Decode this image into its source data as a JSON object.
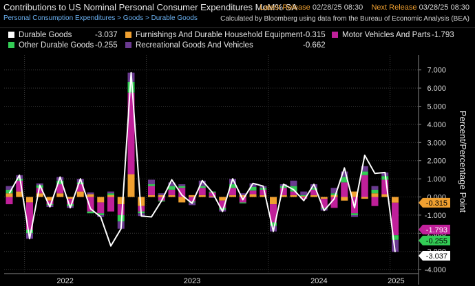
{
  "header": {
    "title": "Contributions to US Nominal Personal Consumer Expenditures MoM% SA",
    "latest_release_label": "Latest Release",
    "latest_release_value": "02/28/25 08:30",
    "next_release_label": "Next Release",
    "next_release_value": "03/28/25 08:30",
    "breadcrumb": "Personal Consumption Expenditures > Goods > Durable Goods",
    "source_note": "Calculated by Bloomberg using data from the Bureau of Economic Analysis (BEA)"
  },
  "legend": [
    {
      "name": "Durable Goods",
      "value": "-3.037",
      "color": "#ffffff"
    },
    {
      "name": "Furnishings And Durable Household Equipment",
      "value": "-0.315",
      "color": "#f0a030"
    },
    {
      "name": "Motor Vehicles And Parts",
      "value": "-1.793",
      "color": "#c0209a"
    },
    {
      "name": "Other Durable Goods",
      "value": "-0.255",
      "color": "#33cc55"
    },
    {
      "name": "Recreational Goods And Vehicles",
      "value": "-0.662",
      "color": "#6a3a90"
    }
  ],
  "chart_data": {
    "type": "bar",
    "stacked": true,
    "title": "Contributions to US Nominal Personal Consumer Expenditures MoM% SA",
    "ylabel": "Percent/Percentage Point",
    "ylim": [
      -4,
      7.5
    ],
    "yticks": [
      "7.000",
      "6.000",
      "5.000",
      "4.000",
      "3.000",
      "2.000",
      "1.000",
      "0.000",
      "-1.000",
      "-2.000",
      "-3.000",
      "-4.000"
    ],
    "year_labels": [
      "2022",
      "2023",
      "2024",
      "2025"
    ],
    "categories": [
      "2021-11",
      "2021-12",
      "2022-01",
      "2022-02",
      "2022-03",
      "2022-04",
      "2022-05",
      "2022-06",
      "2022-07",
      "2022-08",
      "2022-09",
      "2022-10",
      "2022-11",
      "2022-12",
      "2023-01",
      "2023-02",
      "2023-03",
      "2023-04",
      "2023-05",
      "2023-06",
      "2023-07",
      "2023-08",
      "2023-09",
      "2023-10",
      "2023-11",
      "2023-12",
      "2024-01",
      "2024-02",
      "2024-03",
      "2024-04",
      "2024-05",
      "2024-06",
      "2024-07",
      "2024-08",
      "2024-09",
      "2024-10",
      "2024-11",
      "2024-12",
      "2025-01"
    ],
    "series": [
      {
        "name": "Furnishings And Durable Household Equipment",
        "color": "#f0a030",
        "values": [
          0.2,
          0.3,
          -0.3,
          0.2,
          -0.2,
          0.2,
          -0.1,
          0.3,
          0.15,
          -0.3,
          0.1,
          -0.4,
          1.25,
          -0.5,
          0.1,
          0.1,
          0.1,
          -0.3,
          0.1,
          0.1,
          0.05,
          -0.2,
          0.1,
          0.1,
          0.15,
          0.1,
          -0.4,
          0.1,
          0.1,
          0.05,
          0.1,
          -0.1,
          0.1,
          -0.2,
          0.3,
          -0.1,
          0.2,
          0.15,
          -0.315
        ]
      },
      {
        "name": "Motor Vehicles And Parts",
        "color": "#c0209a",
        "values": [
          -0.4,
          0.6,
          -1.5,
          0.3,
          -0.2,
          0.5,
          -0.3,
          0.4,
          -0.8,
          -0.6,
          -0.8,
          -0.6,
          4.5,
          -0.3,
          0.5,
          -0.2,
          0.3,
          0.5,
          -0.25,
          0.4,
          0.2,
          -0.4,
          0.4,
          -0.3,
          0.2,
          0.3,
          -1.0,
          0.4,
          0.2,
          -0.1,
          0.3,
          -0.5,
          -0.6,
          0.8,
          -0.9,
          1.2,
          -0.5,
          0.8,
          -1.793
        ]
      },
      {
        "name": "Other Durable Goods",
        "color": "#33cc55",
        "values": [
          0.2,
          0.1,
          -0.2,
          0.15,
          -0.05,
          0.2,
          -0.1,
          0.1,
          -0.1,
          -0.1,
          0.1,
          -0.35,
          0.6,
          -0.1,
          0.1,
          -0.05,
          0.2,
          0.1,
          -0.05,
          0.1,
          0.05,
          -0.1,
          0.2,
          -0.05,
          0.2,
          0.1,
          -0.2,
          0.1,
          0.3,
          0.05,
          0.1,
          -0.05,
          0.1,
          0.3,
          -0.1,
          0.2,
          0.2,
          0.2,
          -0.255
        ]
      },
      {
        "name": "Recreational Goods And Vehicles",
        "color": "#6a3a90",
        "values": [
          0.2,
          0.2,
          -0.3,
          0.1,
          -0.1,
          0.2,
          -0.1,
          0.2,
          0.1,
          -0.1,
          0.1,
          -0.4,
          0.5,
          -0.15,
          0.25,
          0.1,
          0.2,
          0.1,
          -0.15,
          0.3,
          -0.05,
          -0.1,
          0.3,
          0.1,
          0.2,
          0.1,
          -0.3,
          0.1,
          0.3,
          0.2,
          0.2,
          -0.1,
          0.3,
          0.3,
          -0.1,
          0.3,
          0.2,
          0.2,
          -0.662
        ]
      }
    ],
    "line": {
      "name": "Durable Goods",
      "color": "#ffffff",
      "values": [
        0.2,
        1.2,
        -2.3,
        0.65,
        -0.55,
        1.1,
        -0.6,
        1.0,
        -0.65,
        -1.1,
        -2.7,
        -1.75,
        6.85,
        -1.05,
        -1.1,
        -0.2,
        0.95,
        0.1,
        -0.35,
        0.9,
        0.25,
        -0.8,
        1.0,
        -0.15,
        0.75,
        0.6,
        -1.9,
        0.7,
        0.4,
        -0.2,
        0.7,
        -0.75,
        -0.1,
        1.6,
        -0.6,
        2.3,
        1.3,
        1.35,
        -3.037
      ]
    },
    "last_value_labels": [
      {
        "value": "-0.315",
        "color": "#f0a030"
      },
      {
        "value": "-1.793",
        "color": "#c0209a"
      },
      {
        "value": "-0.255",
        "color": "#33cc55"
      },
      {
        "value": "-3.037",
        "color": "#ffffff"
      }
    ]
  }
}
